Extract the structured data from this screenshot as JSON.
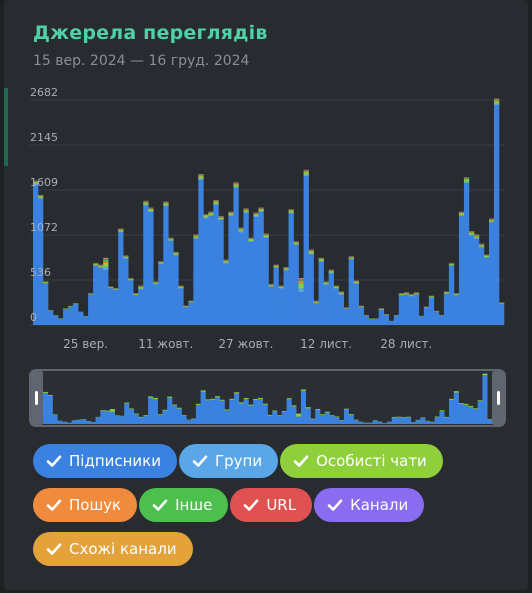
{
  "header": {
    "title": "Джерела переглядів",
    "subtitle": "15 вер. 2024 — 16 груд. 2024"
  },
  "legend": [
    {
      "label": "Підписники",
      "color": "#3b82e0",
      "checked": true
    },
    {
      "label": "Групи",
      "color": "#5aa6e6",
      "checked": true
    },
    {
      "label": "Особисті чати",
      "color": "#8fcf3c",
      "checked": true
    },
    {
      "label": "Пошук",
      "color": "#f08a3c",
      "checked": true
    },
    {
      "label": "Інше",
      "color": "#4cbf4c",
      "checked": true
    },
    {
      "label": "URL",
      "color": "#e05252",
      "checked": true
    },
    {
      "label": "Канали",
      "color": "#8a6cf0",
      "checked": true
    },
    {
      "label": "Схожі канали",
      "color": "#e3a23a",
      "checked": true
    }
  ],
  "chart_data": {
    "type": "bar",
    "stacked": true,
    "title": "Джерела переглядів",
    "subtitle": "15 вер. 2024 — 16 груд. 2024",
    "y_ticks": [
      0,
      536,
      1072,
      1609,
      2145,
      2682
    ],
    "ylim": [
      0,
      2682
    ],
    "x_ticks": [
      {
        "index": 10,
        "label": "25 вер."
      },
      {
        "index": 26,
        "label": "11 жовт."
      },
      {
        "index": 42,
        "label": "27 жовт."
      },
      {
        "index": 58,
        "label": "12 лист."
      },
      {
        "index": 74,
        "label": "28 лист."
      }
    ],
    "grid": true,
    "series_colors": {
      "Підписники": "#3b82e0",
      "Групи": "#5aa6e6",
      "Особисті чати": "#8fcf3c",
      "Пошук": "#f08a3c",
      "Інше": "#4cbf4c",
      "URL": "#e05252",
      "Канали": "#8a6cf0",
      "Схожі канали": "#e3a23a"
    },
    "totals": [
      1720,
      1550,
      520,
      180,
      120,
      80,
      200,
      230,
      260,
      160,
      110,
      380,
      740,
      720,
      800,
      460,
      440,
      1150,
      830,
      560,
      380,
      470,
      1480,
      1400,
      520,
      760,
      1470,
      1040,
      870,
      470,
      230,
      290,
      1080,
      1800,
      1320,
      1350,
      1490,
      1300,
      780,
      1350,
      1700,
      1160,
      1390,
      1040,
      1340,
      1400,
      1090,
      490,
      720,
      470,
      690,
      1380,
      1000,
      560,
      1850,
      900,
      290,
      800,
      520,
      660,
      470,
      400,
      210,
      820,
      530,
      230,
      120,
      80,
      80,
      200,
      130,
      50,
      120,
      380,
      390,
      370,
      390,
      110,
      220,
      350,
      170,
      120,
      400,
      740,
      380,
      1350,
      1760,
      1120,
      1080,
      970,
      840,
      1270,
      2700,
      270
    ],
    "other_share": [
      0.03,
      0.03,
      0.05,
      0.06,
      0.07,
      0.1,
      0.05,
      0.05,
      0.06,
      0.05,
      0.09,
      0.05,
      0.05,
      0.06,
      0.18,
      0.06,
      0.05,
      0.04,
      0.05,
      0.06,
      0.08,
      0.1,
      0.04,
      0.04,
      0.07,
      0.05,
      0.04,
      0.04,
      0.05,
      0.08,
      0.1,
      0.08,
      0.05,
      0.04,
      0.04,
      0.04,
      0.04,
      0.04,
      0.06,
      0.04,
      0.04,
      0.05,
      0.04,
      0.05,
      0.04,
      0.04,
      0.05,
      0.08,
      0.06,
      0.08,
      0.06,
      0.04,
      0.05,
      0.3,
      0.04,
      0.07,
      0.12,
      0.06,
      0.08,
      0.07,
      0.08,
      0.1,
      0.1,
      0.05,
      0.08,
      0.1,
      0.1,
      0.1,
      0.1,
      0.1,
      0.1,
      0.1,
      0.1,
      0.08,
      0.08,
      0.08,
      0.08,
      0.1,
      0.1,
      0.08,
      0.1,
      0.1,
      0.08,
      0.05,
      0.08,
      0.04,
      0.04,
      0.05,
      0.05,
      0.05,
      0.05,
      0.04,
      0.03,
      0.08
    ]
  },
  "navigator": {
    "range_start": 0,
    "range_end": 1
  }
}
